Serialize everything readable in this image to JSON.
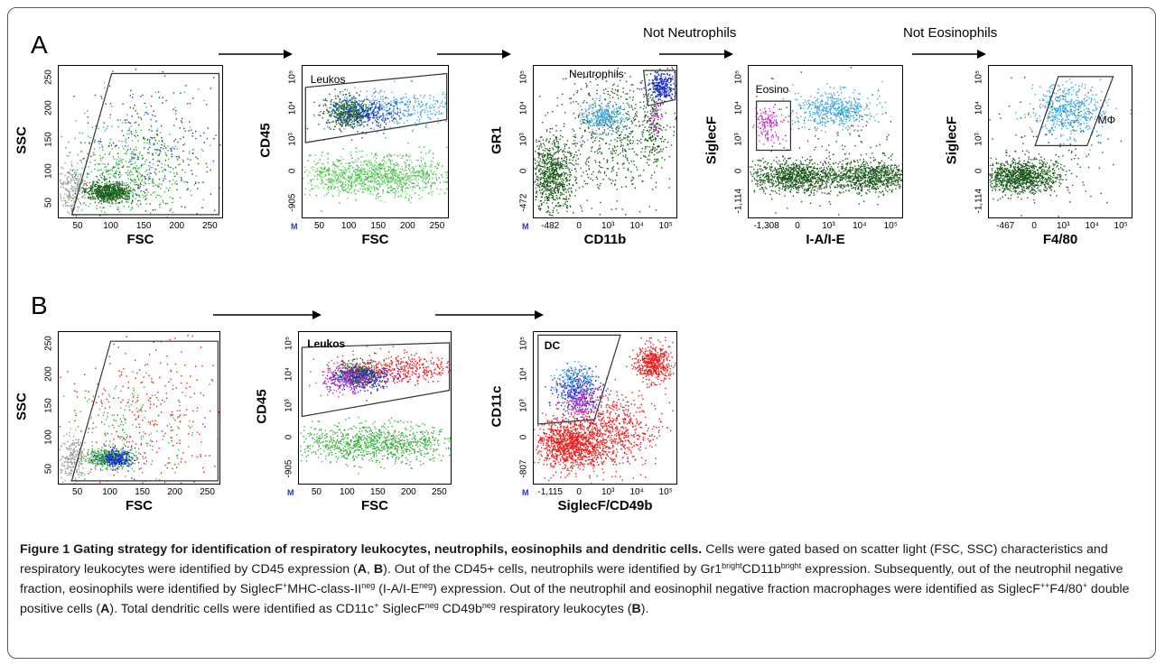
{
  "panels": {
    "a_letter": "A",
    "b_letter": "B"
  },
  "arrows": {
    "a1": "",
    "a2": "",
    "a3": "Not Neutrophils",
    "a4": "Not Eosinophils"
  },
  "plots": {
    "a1": {
      "xlabel": "FSC",
      "ylabel": "SSC",
      "xticks": [
        "50",
        "100",
        "150",
        "200",
        "250"
      ],
      "yticks": [
        "50",
        "100",
        "150",
        "200",
        "250"
      ],
      "gate": ""
    },
    "a2": {
      "xlabel": "FSC",
      "ylabel": "CD45",
      "xticks": [
        "50",
        "100",
        "150",
        "200",
        "250"
      ],
      "yticks": [
        "-905",
        "0",
        "10³",
        "10⁴",
        "10⁵"
      ],
      "gate": "Leukos",
      "m": "M"
    },
    "a3": {
      "xlabel": "CD11b",
      "ylabel": "GR1",
      "xticks": [
        "-482",
        "0",
        "10³",
        "10⁴",
        "10⁵"
      ],
      "yticks": [
        "-472",
        "0",
        "10³",
        "10⁴",
        "10⁵"
      ],
      "gate": "Neutrophils",
      "m": "M"
    },
    "a4": {
      "xlabel": "I-A/I-E",
      "ylabel": "SiglecF",
      "xticks": [
        "-1,308",
        "0",
        "10³",
        "10⁴",
        "10⁵"
      ],
      "yticks": [
        "-1,114",
        "0",
        "10³",
        "10⁴",
        "10⁵"
      ],
      "gate": "Eosino"
    },
    "a5": {
      "xlabel": "F4/80",
      "ylabel": "SiglecF",
      "xticks": [
        "-467",
        "0",
        "10³",
        "10⁴",
        "10⁵"
      ],
      "yticks": [
        "-1,114",
        "0",
        "10³",
        "10⁴",
        "10⁵"
      ],
      "gate": "MΦ"
    },
    "b1": {
      "xlabel": "FSC",
      "ylabel": "SSC",
      "xticks": [
        "50",
        "100",
        "150",
        "200",
        "250"
      ],
      "yticks": [
        "50",
        "100",
        "150",
        "200",
        "250"
      ],
      "gate": ""
    },
    "b2": {
      "xlabel": "FSC",
      "ylabel": "CD45",
      "xticks": [
        "50",
        "100",
        "150",
        "200",
        "250"
      ],
      "yticks": [
        "-905",
        "0",
        "10³",
        "10⁴",
        "10⁵"
      ],
      "gate": "Leukos",
      "m": "M"
    },
    "b3": {
      "xlabel": "SiglecF/CD49b",
      "ylabel": "CD11c",
      "xticks": [
        "-1,115",
        "0",
        "10³",
        "10⁴",
        "10⁵"
      ],
      "yticks": [
        "-807",
        "0",
        "10³",
        "10⁴",
        "10⁵"
      ],
      "gate": "DC",
      "m": "M"
    }
  },
  "caption": {
    "title": "Figure 1 Gating strategy for identification of respiratory leukocytes, neutrophils, eosinophils and dendritic cells.",
    "s1": " Cells were gated based on scatter light (FSC, SSC) characteristics and respiratory leukocytes were identified by CD45 expression (",
    "s1_a": "A",
    "s1_sep": ", ",
    "s1_b": "B",
    "s1_end": "). Out of the CD45+ cells, neutrophils were identified by Gr1",
    "sup_bright1": "bright",
    "s2": "CD11b",
    "sup_bright2": "bright",
    "s3": " expression. Subsequently, out of the neutrophil negative fraction, eosinophils were identified by SiglecF",
    "sup_plus1": "+",
    "s4": "MHC-class-II",
    "sup_neg1": "neg",
    "s5": " (I-A/I-E",
    "sup_neg2": "neg",
    "s6": ") expression. Out of the neutrophil and eosinophil negative fraction macrophages were identified as SiglecF",
    "sup_pp": "++",
    "s7": "F4/80",
    "sup_plus2": "+",
    "s8": " double positive cells (",
    "s8_a": "A",
    "s9": "). Total dendritic cells were identified as CD11c",
    "sup_plus3": "+",
    "s10": " SiglecF",
    "sup_neg3": "neg",
    "s11": " CD49b",
    "sup_neg4": "neg",
    "s12": " respiratory leukocytes (",
    "s12_b": "B",
    "s13": ")."
  },
  "colors": {
    "dark_green": "#1f5c1f",
    "green": "#3cb043",
    "light_green": "#5fd35f",
    "blue": "#1f2fd0",
    "light_blue": "#3aa8e0",
    "magenta": "#cc33cc",
    "red": "#ee1c1c",
    "grey": "#9a9a9a"
  }
}
